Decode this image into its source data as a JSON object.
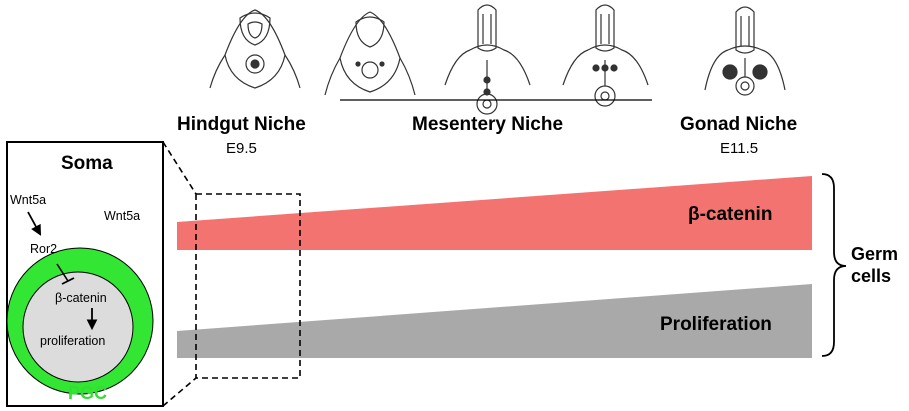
{
  "colors": {
    "beta_catenin_band": "#f2736f",
    "proliferation_band": "#a9a9a9",
    "pgc_ring": "#33e633",
    "pgc_core": "#dcdcdc",
    "pgc_label": "#33dd33"
  },
  "niches": [
    {
      "name": "Hindgut Niche",
      "stage": "E9.5"
    },
    {
      "name": "Mesentery Niche",
      "stage": ""
    },
    {
      "name": "Gonad Niche",
      "stage": "E11.5"
    }
  ],
  "bands": {
    "beta_catenin": "β-catenin",
    "proliferation": "Proliferation"
  },
  "germ_cells_label_line1": "Germ",
  "germ_cells_label_line2": "cells",
  "soma_panel": {
    "title": "Soma",
    "ligand_left": "Wnt5a",
    "ligand_right": "Wnt5a",
    "receptor": "Ror2",
    "beta_catenin": "β-catenin",
    "proliferation": "proliferation",
    "cell_label": "PGC"
  },
  "embryo_icons": [
    "embryo-section-icon",
    "embryo-section-icon",
    "embryo-section-icon",
    "embryo-section-icon",
    "embryo-section-icon"
  ]
}
